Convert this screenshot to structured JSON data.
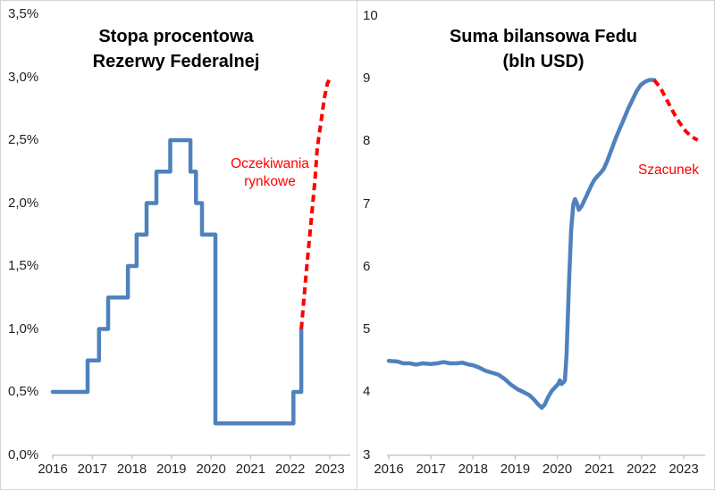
{
  "page": {
    "background_color": "#ffffff",
    "border_color": "#d4d4d4",
    "history_color": "#4f81bd",
    "forecast_color": "#fe0000"
  },
  "chart_data": [
    {
      "type": "line",
      "title": "Stopa procentowa Rezerwy Federalnej",
      "title_lines": [
        "Stopa procentowa",
        "Rezerwy Federalnej"
      ],
      "xlabel": "",
      "ylabel": "",
      "xlim": [
        2016,
        2023.5
      ],
      "ylim": [
        0,
        3.5
      ],
      "grid": false,
      "legend": "none",
      "axis_color": "#bfbfbf",
      "tick_label_color": "#1f1f1f",
      "x_ticks": [
        2016,
        2017,
        2018,
        2019,
        2020,
        2021,
        2022,
        2023
      ],
      "x_tick_labels": [
        "2016",
        "2017",
        "2018",
        "2019",
        "2020",
        "2021",
        "2022",
        "2023"
      ],
      "y_ticks": [
        0,
        0.5,
        1.0,
        1.5,
        2.0,
        2.5,
        3.0,
        3.5
      ],
      "y_tick_labels": [
        "0,0%",
        "0,5%",
        "1,0%",
        "1,5%",
        "2,0%",
        "2,5%",
        "3,0%",
        "3,5%"
      ],
      "annotation": {
        "lines": [
          "Oczekiwania",
          "rynkowe"
        ],
        "color": "#fe0000"
      },
      "series": [
        {
          "name": "Stopa procentowa Fed (historia)",
          "color": "#4f81bd",
          "dash": false,
          "width": 4.5,
          "points": [
            [
              2016.0,
              0.5
            ],
            [
              2016.88,
              0.5
            ],
            [
              2016.88,
              0.75
            ],
            [
              2017.17,
              0.75
            ],
            [
              2017.17,
              1.0
            ],
            [
              2017.4,
              1.0
            ],
            [
              2017.4,
              1.25
            ],
            [
              2017.9,
              1.25
            ],
            [
              2017.9,
              1.5
            ],
            [
              2018.12,
              1.5
            ],
            [
              2018.12,
              1.75
            ],
            [
              2018.37,
              1.75
            ],
            [
              2018.37,
              2.0
            ],
            [
              2018.62,
              2.0
            ],
            [
              2018.62,
              2.25
            ],
            [
              2018.97,
              2.25
            ],
            [
              2018.97,
              2.5
            ],
            [
              2019.48,
              2.5
            ],
            [
              2019.48,
              2.25
            ],
            [
              2019.62,
              2.25
            ],
            [
              2019.62,
              2.0
            ],
            [
              2019.77,
              2.0
            ],
            [
              2019.77,
              1.75
            ],
            [
              2020.11,
              1.75
            ],
            [
              2020.11,
              0.25
            ],
            [
              2022.08,
              0.25
            ],
            [
              2022.08,
              0.5
            ],
            [
              2022.28,
              0.5
            ],
            [
              2022.28,
              1.0
            ]
          ]
        },
        {
          "name": "Oczekiwania rynkowe (prognoza)",
          "color": "#fe0000",
          "dash": true,
          "width": 4,
          "points": [
            [
              2022.28,
              1.0
            ],
            [
              2022.42,
              1.5
            ],
            [
              2022.55,
              1.93
            ],
            [
              2022.63,
              2.2
            ],
            [
              2022.68,
              2.42
            ],
            [
              2022.72,
              2.52
            ],
            [
              2022.78,
              2.65
            ],
            [
              2022.86,
              2.83
            ],
            [
              2022.94,
              2.95
            ],
            [
              2023.0,
              2.99
            ],
            [
              2023.06,
              3.0
            ]
          ]
        }
      ]
    },
    {
      "type": "line",
      "title": "Suma bilansowa Fedu (bln USD)",
      "title_lines": [
        "Suma bilansowa Fedu",
        "(bln USD)"
      ],
      "xlabel": "",
      "ylabel": "bln USD",
      "xlim": [
        2016,
        2023.5
      ],
      "ylim": [
        3,
        10
      ],
      "grid": false,
      "legend": "none",
      "axis_color": "#bfbfbf",
      "tick_label_color": "#1f1f1f",
      "x_ticks": [
        2016,
        2017,
        2018,
        2019,
        2020,
        2021,
        2022,
        2023
      ],
      "x_tick_labels": [
        "2016",
        "2017",
        "2018",
        "2019",
        "2020",
        "2021",
        "2022",
        "2023"
      ],
      "y_ticks": [
        3,
        4,
        5,
        6,
        7,
        8,
        9,
        10
      ],
      "y_tick_labels": [
        "3",
        "4",
        "5",
        "6",
        "7",
        "8",
        "9",
        "10"
      ],
      "annotation": {
        "lines": [
          "Szacunek"
        ],
        "color": "#fe0000"
      },
      "series": [
        {
          "name": "Suma bilansowa Fedu (historia)",
          "color": "#4f81bd",
          "dash": false,
          "width": 4.5,
          "points": [
            [
              2016.0,
              4.5
            ],
            [
              2016.2,
              4.49
            ],
            [
              2016.35,
              4.46
            ],
            [
              2016.5,
              4.46
            ],
            [
              2016.65,
              4.44
            ],
            [
              2016.8,
              4.46
            ],
            [
              2017.0,
              4.45
            ],
            [
              2017.15,
              4.46
            ],
            [
              2017.3,
              4.48
            ],
            [
              2017.45,
              4.46
            ],
            [
              2017.6,
              4.46
            ],
            [
              2017.75,
              4.47
            ],
            [
              2017.9,
              4.44
            ],
            [
              2018.0,
              4.43
            ],
            [
              2018.15,
              4.39
            ],
            [
              2018.3,
              4.34
            ],
            [
              2018.45,
              4.31
            ],
            [
              2018.6,
              4.28
            ],
            [
              2018.75,
              4.21
            ],
            [
              2018.9,
              4.12
            ],
            [
              2019.05,
              4.05
            ],
            [
              2019.2,
              4.0
            ],
            [
              2019.34,
              3.95
            ],
            [
              2019.45,
              3.88
            ],
            [
              2019.55,
              3.8
            ],
            [
              2019.63,
              3.75
            ],
            [
              2019.7,
              3.8
            ],
            [
              2019.78,
              3.92
            ],
            [
              2019.87,
              4.02
            ],
            [
              2019.95,
              4.08
            ],
            [
              2020.02,
              4.13
            ],
            [
              2020.06,
              4.19
            ],
            [
              2020.1,
              4.13
            ],
            [
              2020.15,
              4.16
            ],
            [
              2020.18,
              4.19
            ],
            [
              2020.22,
              4.6
            ],
            [
              2020.28,
              5.8
            ],
            [
              2020.33,
              6.6
            ],
            [
              2020.38,
              7.0
            ],
            [
              2020.42,
              7.08
            ],
            [
              2020.46,
              7.02
            ],
            [
              2020.51,
              6.91
            ],
            [
              2020.58,
              6.97
            ],
            [
              2020.65,
              7.07
            ],
            [
              2020.72,
              7.17
            ],
            [
              2020.8,
              7.29
            ],
            [
              2020.88,
              7.39
            ],
            [
              2020.96,
              7.45
            ],
            [
              2021.03,
              7.5
            ],
            [
              2021.1,
              7.56
            ],
            [
              2021.18,
              7.68
            ],
            [
              2021.28,
              7.86
            ],
            [
              2021.38,
              8.04
            ],
            [
              2021.48,
              8.2
            ],
            [
              2021.58,
              8.36
            ],
            [
              2021.68,
              8.52
            ],
            [
              2021.78,
              8.66
            ],
            [
              2021.88,
              8.8
            ],
            [
              2021.98,
              8.9
            ],
            [
              2022.08,
              8.95
            ],
            [
              2022.18,
              8.98
            ],
            [
              2022.3,
              8.98
            ]
          ]
        },
        {
          "name": "Szacunek (prognoza)",
          "color": "#fe0000",
          "dash": true,
          "width": 4,
          "points": [
            [
              2022.3,
              8.98
            ],
            [
              2022.45,
              8.85
            ],
            [
              2022.6,
              8.66
            ],
            [
              2022.75,
              8.47
            ],
            [
              2022.9,
              8.3
            ],
            [
              2023.05,
              8.16
            ],
            [
              2023.2,
              8.07
            ],
            [
              2023.33,
              8.02
            ]
          ]
        }
      ]
    }
  ]
}
